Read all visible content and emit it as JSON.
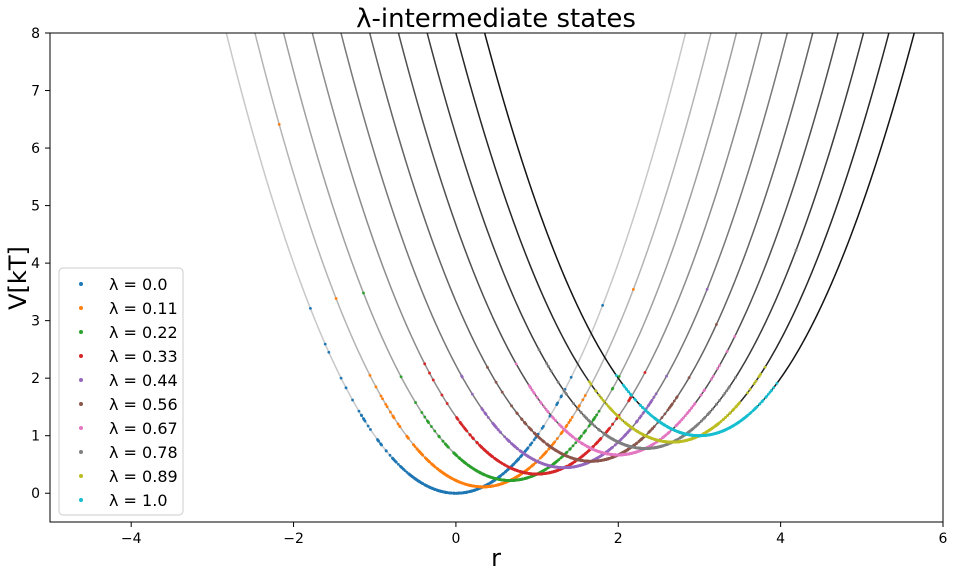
{
  "chart_data": {
    "type": "scatter",
    "title": "λ-intermediate states",
    "xlabel": "r",
    "ylabel": "V[kT]",
    "xlim": [
      -5,
      6
    ],
    "ylim": [
      -0.5,
      8
    ],
    "xticks": [
      "−4",
      "−2",
      "0",
      "2",
      "4",
      "6"
    ],
    "yticks": [
      "0",
      "1",
      "2",
      "3",
      "4",
      "5",
      "6",
      "7",
      "8"
    ],
    "grid": false,
    "legend_position": "lower-left",
    "potential_model": "V(r) = (r - 3λ)^2 + λ",
    "series": [
      {
        "name": "λ = 0.0",
        "lambda": 0.0,
        "color": "#1f77b4",
        "curve_color": "#c8c8c8"
      },
      {
        "name": "λ = 0.11",
        "lambda": 0.1111,
        "color": "#ff7f0e",
        "curve_color": "#b4b4b4"
      },
      {
        "name": "λ = 0.22",
        "lambda": 0.2222,
        "color": "#2ca02c",
        "curve_color": "#a0a0a0"
      },
      {
        "name": "λ = 0.33",
        "lambda": 0.3333,
        "color": "#d62728",
        "curve_color": "#8c8c8c"
      },
      {
        "name": "λ = 0.44",
        "lambda": 0.4444,
        "color": "#9467bd",
        "curve_color": "#787878"
      },
      {
        "name": "λ = 0.56",
        "lambda": 0.5556,
        "color": "#8c564b",
        "curve_color": "#646464"
      },
      {
        "name": "λ = 0.67",
        "lambda": 0.6667,
        "color": "#e377c2",
        "curve_color": "#505050"
      },
      {
        "name": "λ = 0.78",
        "lambda": 0.7778,
        "color": "#7f7f7f",
        "curve_color": "#3c3c3c"
      },
      {
        "name": "λ = 0.89",
        "lambda": 0.8889,
        "color": "#bcbd22",
        "curve_color": "#282828"
      },
      {
        "name": "λ = 1.0",
        "lambda": 1.0,
        "color": "#17becf",
        "curve_color": "#141414"
      }
    ]
  }
}
